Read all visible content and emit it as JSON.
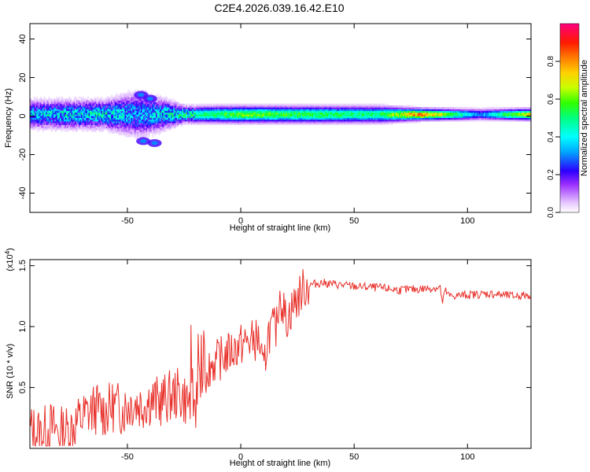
{
  "title": "C2E4.2026.039.16.42.E10",
  "chart_data": [
    {
      "type": "heatmap",
      "title": "C2E4.2026.039.16.42.E10",
      "xlabel": "Height of straight line (km)",
      "ylabel": "Frequency (Hz)",
      "xlim": [
        -93,
        128
      ],
      "ylim": [
        -50,
        48
      ],
      "xticks": [
        "-50",
        "0",
        "50",
        "100"
      ],
      "yticks": [
        "40",
        "20",
        "0",
        "-20",
        "-40"
      ],
      "colorbar": {
        "label": "Normalized spectral amplitude",
        "range": [
          0,
          1
        ],
        "ticks": [
          "0.0",
          "0.2",
          "0.4",
          "0.6",
          "0.8"
        ]
      },
      "ridge": {
        "center_frequency_hz": 1,
        "description_points": [
          {
            "x": -90,
            "amplitude": 0.35,
            "spread_hz": 5
          },
          {
            "x": -60,
            "amplitude": 0.4,
            "spread_hz": 5
          },
          {
            "x": -45,
            "amplitude": 0.3,
            "spread_hz": 8
          },
          {
            "x": -25,
            "amplitude": 0.45,
            "spread_hz": 3
          },
          {
            "x": 0,
            "amplitude": 0.6,
            "spread_hz": 3
          },
          {
            "x": 25,
            "amplitude": 0.55,
            "spread_hz": 3
          },
          {
            "x": 60,
            "amplitude": 0.5,
            "spread_hz": 3
          },
          {
            "x": 80,
            "amplitude": 0.85,
            "spread_hz": 2
          },
          {
            "x": 105,
            "amplitude": 0.3,
            "spread_hz": 2
          },
          {
            "x": 128,
            "amplitude": 0.75,
            "spread_hz": 2
          }
        ]
      }
    },
    {
      "type": "line",
      "xlabel": "Height of straight line (km)",
      "ylabel": "SNR (10 * v/v)",
      "y_multiplier": "(x10",
      "y_multiplier_exp": "4",
      "y_multiplier_close": ")",
      "xlim": [
        -93,
        128
      ],
      "ylim": [
        0,
        1.55
      ],
      "xticks": [
        "-50",
        "0",
        "50",
        "100"
      ],
      "yticks": [
        "1.5",
        "1.0",
        "0.5"
      ],
      "series": [
        {
          "name": "SNR",
          "color": "#e8302a",
          "x": [
            -92,
            -88,
            -84,
            -80,
            -76,
            -72,
            -68,
            -64,
            -60,
            -56,
            -52,
            -48,
            -44,
            -40,
            -36,
            -32,
            -28,
            -24,
            -20,
            -18,
            -16,
            -12,
            -8,
            -4,
            0,
            4,
            8,
            10,
            12,
            16,
            17,
            20,
            24,
            28,
            32,
            36,
            40,
            50,
            60,
            70,
            80,
            88,
            89,
            90,
            92,
            100,
            110,
            120,
            128
          ],
          "values": [
            0.15,
            0.12,
            0.18,
            0.13,
            0.15,
            0.22,
            0.28,
            0.33,
            0.3,
            0.35,
            0.32,
            0.38,
            0.36,
            0.4,
            0.38,
            0.42,
            0.45,
            0.4,
            0.35,
            0.5,
            0.65,
            0.7,
            0.75,
            0.8,
            0.85,
            0.88,
            0.9,
            0.6,
            0.95,
            1.0,
            1.3,
            1.05,
            1.2,
            1.32,
            1.35,
            1.36,
            1.35,
            1.33,
            1.32,
            1.3,
            1.31,
            1.32,
            1.18,
            1.3,
            1.25,
            1.26,
            1.27,
            1.25,
            1.26
          ]
        }
      ]
    }
  ],
  "colors": {
    "line": "#e8302a",
    "axes": "#000000"
  }
}
